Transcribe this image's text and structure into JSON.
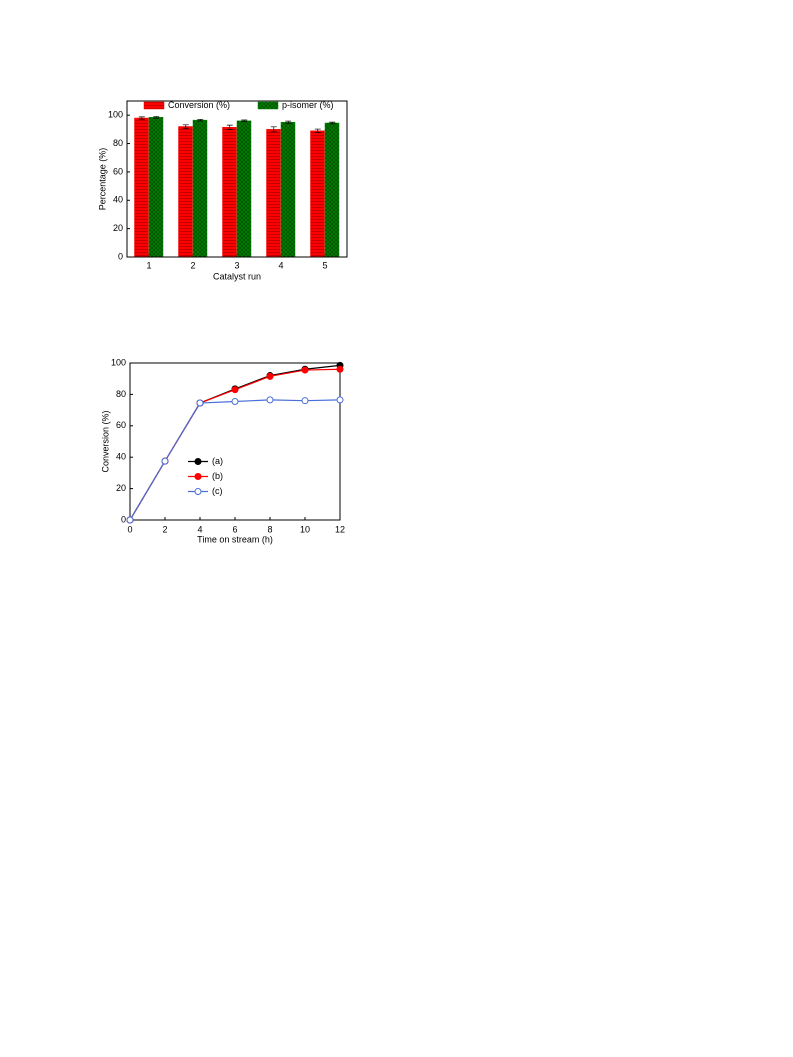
{
  "chart_data": [
    {
      "type": "bar",
      "xlabel": "Catalyst run",
      "ylabel": "Percentage (%)",
      "categories": [
        "1",
        "2",
        "3",
        "4",
        "5"
      ],
      "series": [
        {
          "name": "Conversion (%)",
          "color": "#ff0000",
          "values": [
            98,
            92,
            91.5,
            90,
            89
          ],
          "errors": [
            0.8,
            1.2,
            1.5,
            1.8,
            1.2
          ]
        },
        {
          "name": "p-isomer (%)",
          "color": "#008000",
          "values": [
            98.5,
            96.5,
            96,
            95,
            94.5
          ],
          "errors": [
            0.6,
            0.6,
            0.6,
            0.8,
            0.6
          ]
        }
      ],
      "ylim": [
        0,
        110
      ],
      "yticks": [
        0,
        20,
        40,
        60,
        80,
        100
      ],
      "legend": "top"
    },
    {
      "type": "line",
      "xlabel": "Time on stream (h)",
      "ylabel": "Conversion (%)",
      "x": [
        0,
        2,
        4,
        6,
        8,
        10,
        12
      ],
      "series": [
        {
          "name": "(a)",
          "color": "#000000",
          "marker": "filled",
          "values": [
            0,
            37.5,
            74.5,
            83.5,
            92,
            96,
            98.5
          ]
        },
        {
          "name": "(b)",
          "color": "#ff0000",
          "marker": "filled",
          "values": [
            0,
            37.5,
            74.5,
            83,
            91.5,
            95.5,
            96
          ]
        },
        {
          "name": "(c)",
          "color": "#4a6fd8",
          "marker": "open",
          "values": [
            0,
            37.5,
            74.5,
            75.5,
            76.5,
            76,
            76.5
          ]
        }
      ],
      "xlim": [
        0,
        12
      ],
      "xticks": [
        0,
        2,
        4,
        6,
        8,
        10,
        12
      ],
      "ylim": [
        0,
        100
      ],
      "yticks": [
        0,
        20,
        40,
        60,
        80,
        100
      ],
      "legend": "left"
    }
  ]
}
